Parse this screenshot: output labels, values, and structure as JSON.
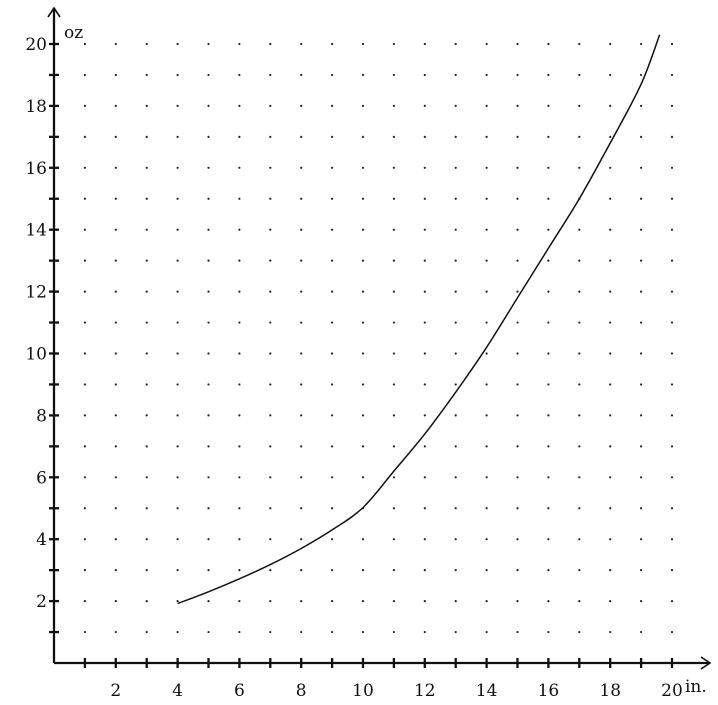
{
  "chart_data": {
    "type": "line",
    "xlabel": "in.",
    "ylabel": "oz",
    "xlim": [
      0,
      21
    ],
    "ylim": [
      0,
      21
    ],
    "grid": "dotted",
    "x_ticks": [
      2,
      4,
      6,
      8,
      10,
      12,
      14,
      16,
      18,
      20
    ],
    "y_ticks": [
      2,
      4,
      6,
      8,
      10,
      12,
      14,
      16,
      18,
      20
    ],
    "series": [
      {
        "x": [
          4,
          5,
          6,
          7,
          8,
          9,
          10,
          11,
          12,
          13,
          14,
          15,
          16,
          17,
          18,
          19,
          19.6
        ],
        "y": [
          1.92,
          2.3,
          2.72,
          3.18,
          3.7,
          4.3,
          5.02,
          6.2,
          7.4,
          8.75,
          10.2,
          11.8,
          13.4,
          15.0,
          16.8,
          18.7,
          20.3
        ]
      }
    ],
    "colors": {
      "axis": "#111111",
      "curve": "#111111",
      "grid": "#222222"
    }
  }
}
